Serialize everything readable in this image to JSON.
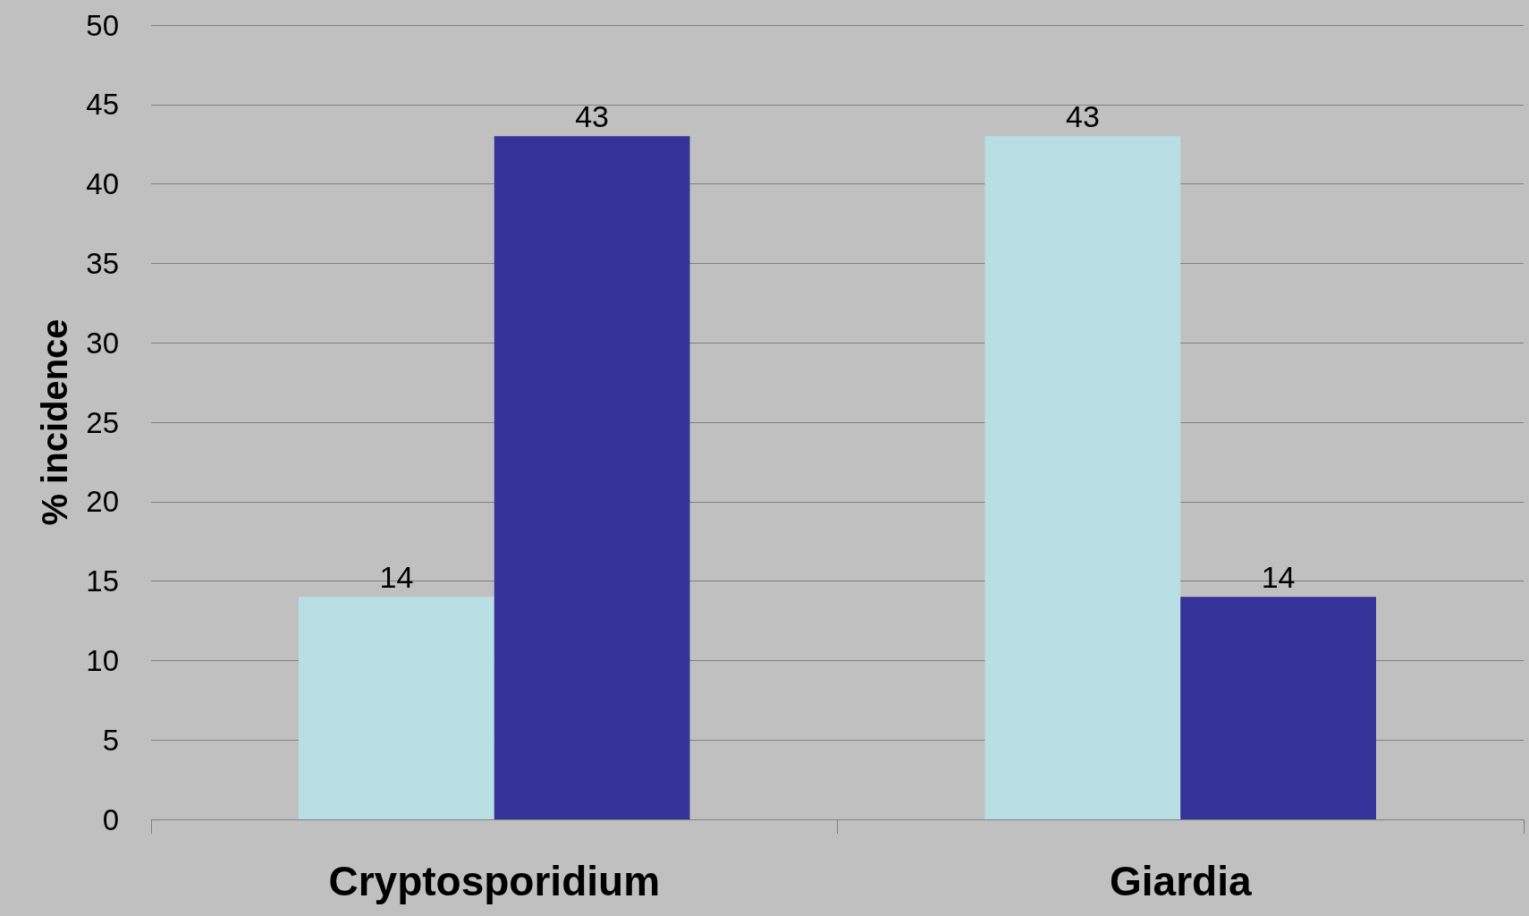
{
  "chart_data": {
    "type": "bar",
    "ylabel": "% incidence",
    "categories": [
      "Cryptosporidium",
      "Giardia"
    ],
    "series": [
      {
        "color": "#b8dfe3",
        "values": [
          14,
          43
        ]
      },
      {
        "color": "#333399",
        "values": [
          43,
          14
        ]
      }
    ],
    "ylim": [
      0,
      50
    ],
    "yticks": [
      0,
      5,
      10,
      15,
      20,
      25,
      30,
      35,
      40,
      45,
      50
    ],
    "grid": "y",
    "data_labels": true
  }
}
